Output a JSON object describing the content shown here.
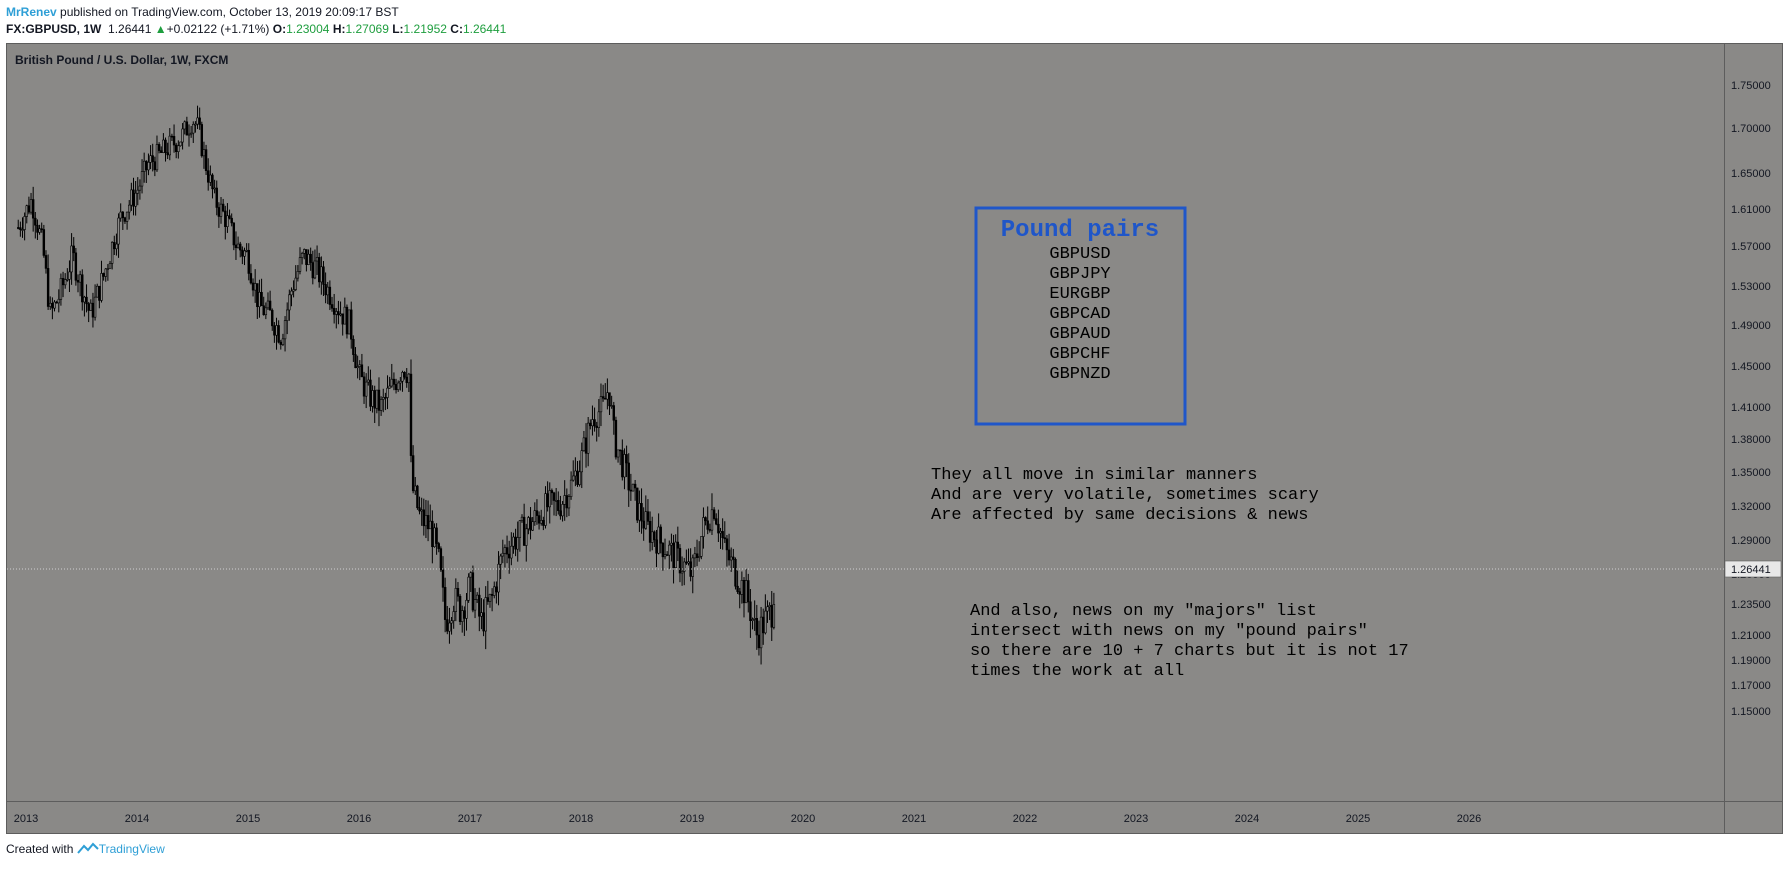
{
  "header": {
    "author": "MrRenev",
    "published_text": " published on TradingView.com, October 13, 2019 20:09:17 BST",
    "symbol": "FX:GBPUSD, 1W",
    "last": "1.26441",
    "change": "+0.02122 (+1.71%)",
    "open_label": "O:",
    "open_value": "1.23004",
    "high_label": "H:",
    "high_value": "1.27069",
    "low_label": "L:",
    "low_value": "1.21952",
    "close_label": "C:",
    "close_value": "1.26441"
  },
  "footer": {
    "created_text": "Created with",
    "brand": "TradingView"
  },
  "colors": {
    "background": "#8a8987",
    "candle": "#000000",
    "box_border": "#1f56c9",
    "box_title": "#1f56c9",
    "header_up": "#1e9e3e"
  },
  "chart_data": {
    "type": "candlestick",
    "title": "British Pound / U.S. Dollar, 1W, FXCM",
    "y_ticks": [
      "1.15000",
      "1.17000",
      "1.19000",
      "1.21000",
      "1.23500",
      "1.26000",
      "1.29000",
      "1.32000",
      "1.35000",
      "1.38000",
      "1.41000",
      "1.45000",
      "1.49000",
      "1.53000",
      "1.57000",
      "1.61000",
      "1.65000",
      "1.70000",
      "1.75000"
    ],
    "x_ticks": [
      "2013",
      "2014",
      "2015",
      "2016",
      "2017",
      "2018",
      "2019",
      "2020",
      "2021",
      "2022",
      "2023",
      "2024",
      "2025",
      "2026"
    ],
    "x_range": [
      2012.93,
      2026.55
    ],
    "last_price": 1.26441,
    "last_price_label": "1.26441",
    "series": [
      {
        "x": [
          2012.93,
          2013.05,
          2013.15,
          2013.22,
          2013.3,
          2013.42,
          2013.5,
          2013.58,
          2013.7,
          2013.85,
          2014.0,
          2014.1,
          2014.2,
          2014.3,
          2014.4,
          2014.5,
          2014.55,
          2014.62,
          2014.7,
          2014.8,
          2014.9,
          2015.0,
          2015.1,
          2015.2,
          2015.3,
          2015.4,
          2015.5,
          2015.6,
          2015.7,
          2015.8,
          2015.92,
          2016.0,
          2016.1,
          2016.2,
          2016.3,
          2016.4,
          2016.46,
          2016.47,
          2016.55,
          2016.65,
          2016.72,
          2016.78,
          2016.85,
          2016.92,
          2017.0,
          2017.1,
          2017.2,
          2017.3,
          2017.4,
          2017.5,
          2017.6,
          2017.7,
          2017.8,
          2017.92,
          2018.0,
          2018.1,
          2018.2,
          2018.25,
          2018.3,
          2018.4,
          2018.5,
          2018.6,
          2018.7,
          2018.8,
          2018.9,
          2019.0,
          2019.1,
          2019.2,
          2019.3,
          2019.4,
          2019.5,
          2019.58,
          2019.65,
          2019.72,
          2019.75
        ],
        "close": [
          1.59,
          1.62,
          1.57,
          1.5,
          1.52,
          1.56,
          1.53,
          1.5,
          1.54,
          1.6,
          1.63,
          1.66,
          1.67,
          1.68,
          1.69,
          1.71,
          1.7,
          1.66,
          1.62,
          1.6,
          1.57,
          1.56,
          1.51,
          1.5,
          1.48,
          1.53,
          1.56,
          1.55,
          1.53,
          1.51,
          1.49,
          1.44,
          1.42,
          1.41,
          1.43,
          1.45,
          1.44,
          1.34,
          1.31,
          1.3,
          1.27,
          1.22,
          1.24,
          1.23,
          1.25,
          1.22,
          1.24,
          1.28,
          1.29,
          1.3,
          1.31,
          1.32,
          1.32,
          1.34,
          1.36,
          1.4,
          1.41,
          1.43,
          1.38,
          1.35,
          1.32,
          1.3,
          1.29,
          1.28,
          1.27,
          1.26,
          1.3,
          1.32,
          1.28,
          1.26,
          1.24,
          1.21,
          1.22,
          1.23,
          1.26
        ]
      }
    ]
  },
  "annotations": {
    "box_title": "Pound pairs",
    "pairs": [
      "GBPUSD",
      "GBPJPY",
      "EURGBP",
      "GBPCAD",
      "GBPAUD",
      "GBPCHF",
      "GBPNZD"
    ],
    "note1": [
      "They all move in similar manners",
      "And are very volatile, sometimes scary",
      "Are affected by same decisions & news"
    ],
    "note2": [
      "And also, news on my \"majors\" list",
      "intersect with news on my \"pound pairs\"",
      "so there are 10 + 7 charts but it is not 17",
      "times the work at all"
    ]
  }
}
